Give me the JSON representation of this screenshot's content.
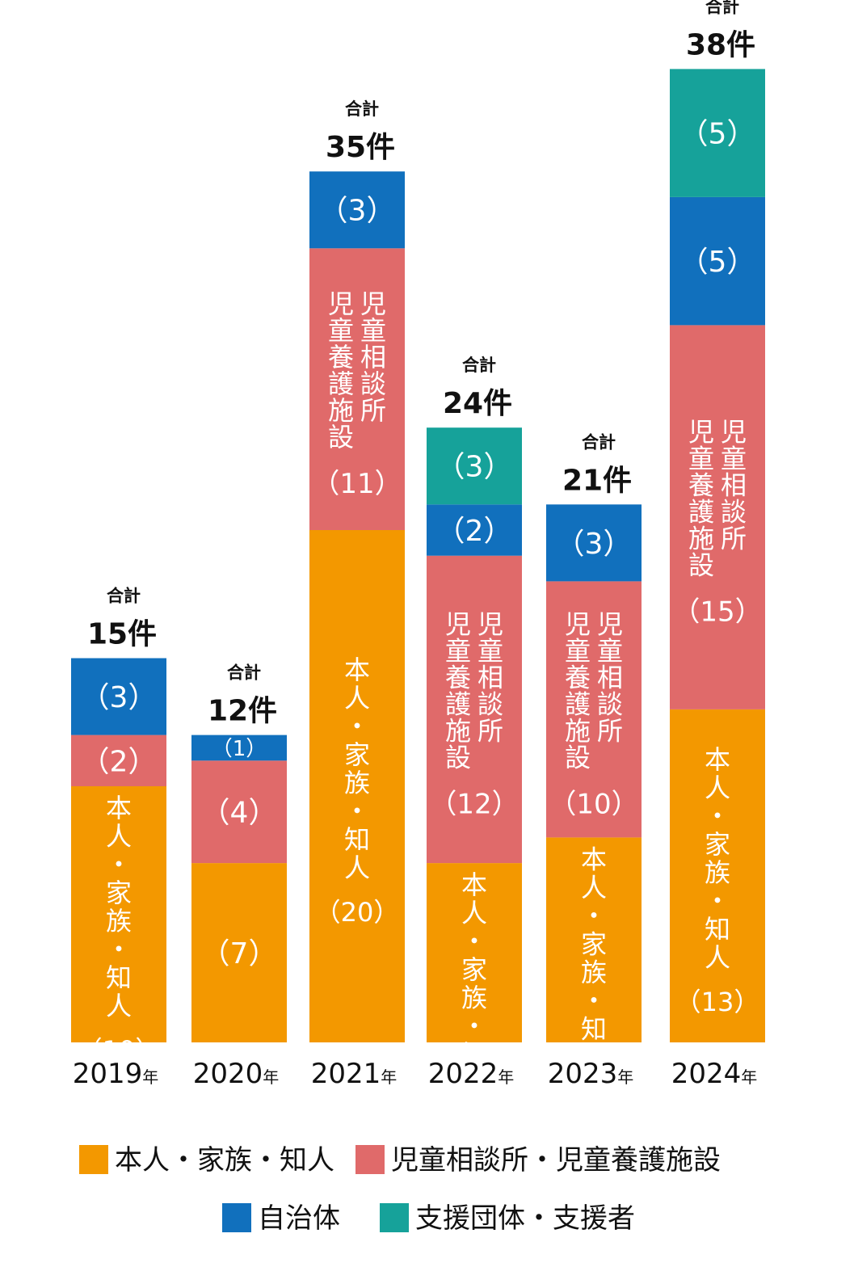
{
  "chart_data": {
    "type": "bar",
    "stacked": true,
    "categories": [
      "2019",
      "2020",
      "2021",
      "2022",
      "2023",
      "2024"
    ],
    "year_suffix": "年",
    "series": [
      {
        "name": "本人・家族・知人",
        "short": "本人・家族・知人",
        "color": "#f39800",
        "values": [
          10,
          7,
          20,
          7,
          8,
          13
        ],
        "show_name": [
          true,
          false,
          true,
          true,
          true,
          true
        ]
      },
      {
        "name": "児童相談所・児童養護施設",
        "short_lines": [
          "児童相談所",
          "児童養護施設"
        ],
        "color": "#e06a6a",
        "values": [
          2,
          4,
          11,
          12,
          10,
          15
        ],
        "show_name": [
          false,
          false,
          true,
          true,
          true,
          true
        ]
      },
      {
        "name": "自治体",
        "color": "#1170bd",
        "values": [
          3,
          1,
          3,
          2,
          3,
          5
        ],
        "show_name": [
          false,
          false,
          false,
          false,
          false,
          false
        ]
      },
      {
        "name": "支援団体・支援者",
        "color": "#16a29a",
        "values": [
          0,
          0,
          0,
          3,
          0,
          5
        ],
        "show_name": [
          false,
          false,
          false,
          false,
          false,
          false
        ]
      }
    ],
    "totals": [
      15,
      12,
      35,
      24,
      21,
      38
    ],
    "total_prefix": "合計",
    "total_suffix": "件",
    "legend": {
      "placement": "bottom",
      "rows": [
        [
          "本人・家族・知人",
          "児童相談所・児童養護施設"
        ],
        [
          "自治体",
          "支援団体・支援者"
        ]
      ]
    },
    "grid": false
  }
}
